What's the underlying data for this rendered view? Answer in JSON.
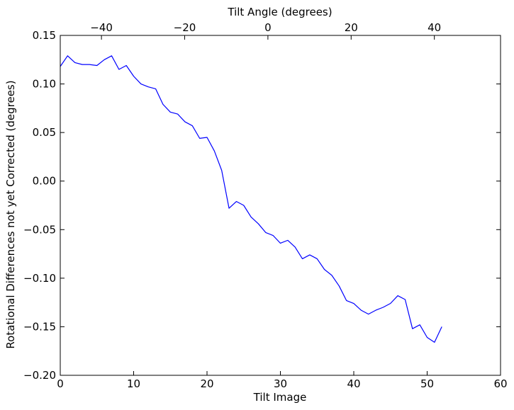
{
  "chart_data": {
    "type": "line",
    "title": "",
    "xlabel": "Tilt Image",
    "ylabel": "Rotational Differences not yet Corrected (degrees)",
    "top_xlabel": "Tilt Angle (degrees)",
    "xlim": [
      0,
      60
    ],
    "ylim": [
      -0.2,
      0.15
    ],
    "top_xlim": [
      -49.9,
      55.9
    ],
    "grid": false,
    "legend": "none",
    "x_ticks": [
      0,
      10,
      20,
      30,
      40,
      50,
      60
    ],
    "x_tick_labels": [
      "0",
      "10",
      "20",
      "30",
      "40",
      "50",
      "60"
    ],
    "y_ticks": [
      -0.2,
      -0.15,
      -0.1,
      -0.05,
      0.0,
      0.05,
      0.1,
      0.15
    ],
    "y_tick_labels": [
      "−0.20",
      "−0.15",
      "−0.10",
      "−0.05",
      "0.00",
      "0.05",
      "0.10",
      "0.15"
    ],
    "top_x_ticks": [
      -40,
      -20,
      0,
      20,
      40
    ],
    "top_x_tick_labels": [
      "−40",
      "−20",
      "0",
      "20",
      "40"
    ],
    "series": [
      {
        "color": "#0000ff",
        "x": [
          0,
          1,
          2,
          3,
          4,
          5,
          6,
          7,
          8,
          9,
          10,
          11,
          12,
          13,
          14,
          15,
          16,
          17,
          18,
          19,
          20,
          21,
          22,
          23,
          24,
          25,
          26,
          27,
          28,
          29,
          30,
          31,
          32,
          33,
          34,
          35,
          36,
          37,
          38,
          39,
          40,
          41,
          42,
          43,
          44,
          45,
          46,
          47,
          48,
          49,
          50,
          51,
          52
        ],
        "y": [
          0.118,
          0.129,
          0.122,
          0.12,
          0.12,
          0.119,
          0.125,
          0.129,
          0.115,
          0.119,
          0.108,
          0.1,
          0.097,
          0.095,
          0.079,
          0.071,
          0.069,
          0.061,
          0.057,
          0.044,
          0.045,
          0.031,
          0.011,
          -0.028,
          -0.021,
          -0.025,
          -0.037,
          -0.044,
          -0.053,
          -0.056,
          -0.064,
          -0.061,
          -0.068,
          -0.08,
          -0.076,
          -0.08,
          -0.091,
          -0.097,
          -0.108,
          -0.123,
          -0.126,
          -0.133,
          -0.137,
          -0.133,
          -0.13,
          -0.126,
          -0.118,
          -0.122,
          -0.152,
          -0.148,
          -0.161,
          -0.166,
          -0.15
        ]
      }
    ]
  }
}
